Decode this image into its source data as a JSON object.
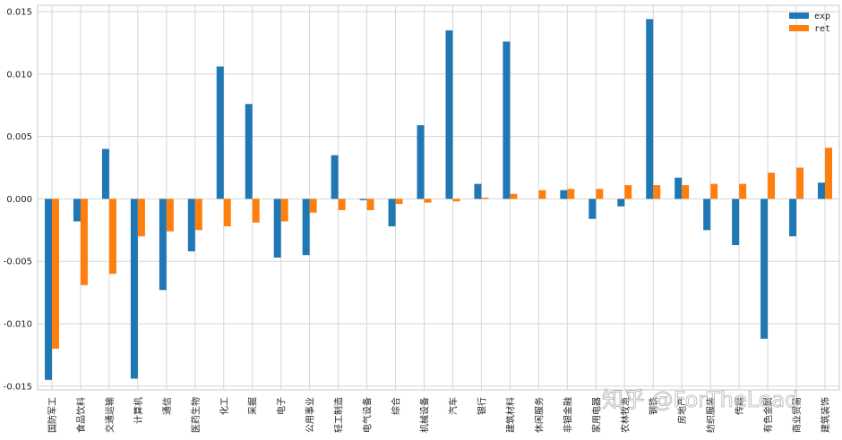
{
  "chart_data": {
    "type": "bar",
    "categories": [
      "国防军工",
      "食品饮料",
      "交通运输",
      "计算机",
      "通信",
      "医药生物",
      "化工",
      "采掘",
      "电子",
      "公用事业",
      "轻工制造",
      "电气设备",
      "综合",
      "机械设备",
      "汽车",
      "银行",
      "建筑材料",
      "休闲服务",
      "非银金融",
      "家用电器",
      "农林牧渔",
      "钢铁",
      "房地产",
      "纺织服装",
      "传媒",
      "有色金属",
      "商业贸易",
      "建筑装饰"
    ],
    "series": [
      {
        "name": "exp",
        "color": "#1f77b4",
        "values": [
          -0.0145,
          -0.0018,
          0.004,
          -0.0144,
          -0.0073,
          -0.0042,
          0.0106,
          0.0076,
          -0.0047,
          -0.0045,
          0.0035,
          -0.0001,
          -0.0022,
          0.0059,
          0.0135,
          0.0012,
          0.0126,
          0.0,
          0.0007,
          -0.0016,
          -0.0006,
          0.0144,
          0.0017,
          -0.0025,
          -0.0037,
          -0.0112,
          -0.003,
          0.0013
        ]
      },
      {
        "name": "ret",
        "color": "#ff7f0e",
        "values": [
          -0.012,
          -0.0069,
          -0.006,
          -0.003,
          -0.0026,
          -0.0025,
          -0.0022,
          -0.0019,
          -0.0018,
          -0.0011,
          -0.0009,
          -0.0009,
          -0.0004,
          -0.0003,
          -0.0002,
          0.0001,
          0.0004,
          0.0007,
          0.0008,
          0.0008,
          0.0011,
          0.0011,
          0.0011,
          0.0012,
          0.0012,
          0.0021,
          0.0025,
          0.0041
        ]
      }
    ],
    "yticks": [
      "0.015",
      "0.010",
      "0.005",
      "0.000",
      "-0.005",
      "-0.010",
      "-0.015"
    ],
    "ylim": [
      -0.0153,
      0.0155
    ],
    "grid": true,
    "legend_position": "top-right"
  },
  "watermark": "知乎 @ForTheLead"
}
